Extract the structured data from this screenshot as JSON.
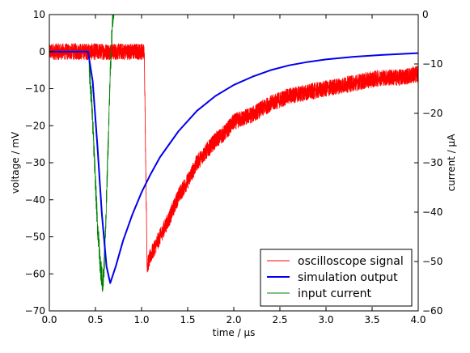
{
  "chart_data": {
    "type": "line",
    "xlabel": "time / μs",
    "ylabel_left": "voltage / mV",
    "ylabel_right": "current / μA",
    "xlim": [
      0.0,
      4.0
    ],
    "ylim_left": [
      -70,
      10
    ],
    "ylim_right": [
      -60,
      0
    ],
    "xticks": [
      "0.0",
      "0.5",
      "1.0",
      "1.5",
      "2.0",
      "2.5",
      "3.0",
      "3.5",
      "4.0"
    ],
    "yticks_left": [
      "10",
      "0",
      "−10",
      "−20",
      "−30",
      "−40",
      "−50",
      "−60",
      "−70"
    ],
    "yticks_right": [
      "0",
      "−10",
      "−20",
      "−30",
      "−40",
      "−50",
      "−60"
    ],
    "grid": false,
    "legend_position": "bottom-right",
    "series": [
      {
        "name": "oscilloscope signal",
        "axis": "left",
        "color": "#ff0000",
        "style": "noisy",
        "noise": 2.2,
        "x": [
          0.0,
          1.03,
          1.045,
          1.06,
          1.1,
          1.2,
          1.3,
          1.4,
          1.5,
          1.6,
          1.7,
          1.8,
          1.9,
          2.0,
          2.2,
          2.4,
          2.6,
          2.8,
          3.0,
          3.2,
          3.4,
          3.6,
          3.8,
          4.0
        ],
        "values": [
          0,
          0,
          -30,
          -58,
          -55,
          -50,
          -45,
          -39,
          -35,
          -30,
          -27,
          -24,
          -22,
          -19,
          -17,
          -14,
          -12,
          -11,
          -10,
          -9,
          -8,
          -7,
          -7,
          -6
        ]
      },
      {
        "name": "simulation output",
        "axis": "left",
        "color": "#0000ee",
        "style": "smooth",
        "x": [
          0.0,
          0.42,
          0.47,
          0.52,
          0.57,
          0.62,
          0.66,
          0.72,
          0.8,
          0.9,
          1.0,
          1.1,
          1.2,
          1.4,
          1.6,
          1.8,
          2.0,
          2.2,
          2.4,
          2.6,
          2.8,
          3.0,
          3.3,
          3.6,
          4.0
        ],
        "values": [
          0,
          0,
          -8,
          -25,
          -44,
          -58,
          -62.5,
          -58,
          -51,
          -44,
          -38,
          -33,
          -28.5,
          -21.5,
          -16,
          -12,
          -9,
          -6.8,
          -5,
          -3.7,
          -2.8,
          -2.1,
          -1.4,
          -0.9,
          -0.4
        ]
      },
      {
        "name": "input current",
        "axis": "right",
        "color": "#008000",
        "style": "noisy",
        "noise": 2.5,
        "x": [
          0.43,
          0.46,
          0.49,
          0.52,
          0.55,
          0.58,
          0.6,
          0.62,
          0.64,
          0.66,
          0.68,
          0.7,
          0.72
        ],
        "values": [
          -10,
          -18,
          -30,
          -42,
          -50,
          -55,
          -49,
          -37,
          -25,
          -12,
          -3,
          2,
          4
        ]
      }
    ]
  }
}
